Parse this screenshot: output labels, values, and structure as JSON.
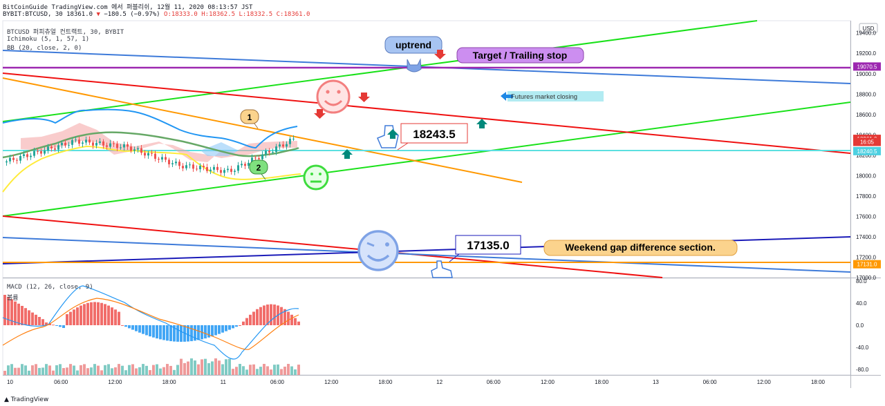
{
  "header": {
    "source_line": "BitCoinGuide TradingView.com 에서 퍼블리쉬, 12월 11, 2020 08:13:57 JST",
    "symbol": "BYBIT:BTCUSD, 30",
    "last": "18361.0",
    "change": "−180.5 (−0.97%)",
    "o": "O:18333.0",
    "h": "H:18362.5",
    "l": "L:18332.5",
    "c": "C:18361.0"
  },
  "legend": {
    "main": "BTCUSD 퍼피츄얼 컨트랙트, 30, BYBIT",
    "ichimoku": "Ichimoku (5, 1, 57, 1)",
    "bb": "BB (20, close, 2, 0)",
    "macd": "MACD (12, 26, close, 9)",
    "volume": "볼륨"
  },
  "footer": {
    "brand": "TradingView"
  },
  "colors": {
    "green": "#19e119",
    "red": "#ef1010",
    "orange": "#ff9800",
    "blue": "#3d7ad9",
    "purple": "#9c27b0",
    "cyan": "#5be0e0",
    "navy": "#1a1ab8",
    "teal_arrow": "#00897b"
  },
  "chart_data": {
    "type": "candlestick",
    "price_axis": {
      "currency": "USD",
      "ticks": [
        "19400.0",
        "19200.0",
        "19000.0",
        "18800.0",
        "18600.0",
        "18400.0",
        "18200.0",
        "18000.0",
        "17800.0",
        "17600.0",
        "17400.0",
        "17200.0",
        "17000.0"
      ],
      "ylim": [
        17000,
        19520
      ]
    },
    "price_tags": [
      {
        "label": "19070.5",
        "value": 19070.5,
        "color": "#9c27b0"
      },
      {
        "label": "18361.0",
        "value": 18361.0,
        "color": "#e53935"
      },
      {
        "label": "16:05",
        "value": 18331,
        "color": "#e53935"
      },
      {
        "label": "18240.5",
        "value": 18240.5,
        "color": "#4dd0e1"
      },
      {
        "label": "17131.0",
        "value": 17131.0,
        "color": "#ff9800"
      }
    ],
    "time_axis": [
      "10",
      "06:00",
      "12:00",
      "18:00",
      "11",
      "06:00",
      "12:00",
      "18:00",
      "12",
      "06:00",
      "12:00",
      "18:00",
      "13",
      "06:00",
      "12:00",
      "18:00"
    ],
    "macd_axis": [
      "80.0",
      "40.0",
      "0.0",
      "-40.0",
      "-80.0"
    ],
    "macd_ylim": [
      -90,
      85
    ],
    "annotations": {
      "uptrend": "uptrend",
      "target": "Target / Trailing stop",
      "futures": "Futures market closing",
      "price1": "18243.5",
      "price2": "17135.0",
      "weekend": "Weekend gap difference section.",
      "mark1": "1",
      "mark2": "2"
    }
  }
}
